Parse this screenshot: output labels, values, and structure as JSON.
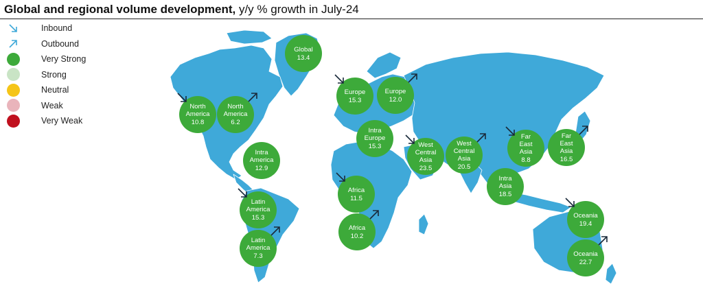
{
  "title": {
    "bold": "Global and regional volume development,",
    "regular": " y/y % growth in July-24"
  },
  "colors": {
    "ocean": "#ffffff",
    "land": "#3fa9d9",
    "very_strong": "#3daa3a",
    "strong": "#c9e4c5",
    "neutral": "#f5c518",
    "weak": "#e9b4bb",
    "very_weak": "#c0101e",
    "inbound_arrow": "#3fa9d9",
    "map_arrow": "#1a2a3a"
  },
  "legend": [
    {
      "label": "Inbound",
      "icon": "inbound-arrow-icon"
    },
    {
      "label": "Outbound",
      "icon": "outbound-arrow-icon"
    },
    {
      "label": "Very Strong",
      "icon": "very-strong-dot-icon",
      "color": "#3daa3a"
    },
    {
      "label": "Strong",
      "icon": "strong-dot-icon",
      "color": "#c9e4c5"
    },
    {
      "label": "Neutral",
      "icon": "neutral-dot-icon",
      "color": "#f5c518"
    },
    {
      "label": "Weak",
      "icon": "weak-dot-icon",
      "color": "#e9b4bb"
    },
    {
      "label": "Very Weak",
      "icon": "very-weak-dot-icon",
      "color": "#c0101e"
    }
  ],
  "regions": [
    {
      "name": "Global",
      "value": "13.4",
      "direction": "none",
      "rating": "Very Strong"
    },
    {
      "name": "North America",
      "value": "10.8",
      "direction": "inbound",
      "rating": "Very Strong"
    },
    {
      "name": "North America",
      "value": "6.2",
      "direction": "outbound",
      "rating": "Very Strong"
    },
    {
      "name": "Intra America",
      "value": "12.9",
      "direction": "none",
      "rating": "Very Strong"
    },
    {
      "name": "Latin America",
      "value": "15.3",
      "direction": "inbound",
      "rating": "Very Strong"
    },
    {
      "name": "Latin America",
      "value": "7.3",
      "direction": "outbound",
      "rating": "Very Strong"
    },
    {
      "name": "Europe",
      "value": "15.3",
      "direction": "inbound",
      "rating": "Very Strong"
    },
    {
      "name": "Europe",
      "value": "12.0",
      "direction": "outbound",
      "rating": "Very Strong"
    },
    {
      "name": "Intra Europe",
      "value": "15.3",
      "direction": "none",
      "rating": "Very Strong"
    },
    {
      "name": "Africa",
      "value": "11.5",
      "direction": "inbound",
      "rating": "Very Strong"
    },
    {
      "name": "Africa",
      "value": "10.2",
      "direction": "outbound",
      "rating": "Very Strong"
    },
    {
      "name": "West Central Asia",
      "value": "23.5",
      "direction": "inbound",
      "rating": "Very Strong"
    },
    {
      "name": "West Central Asia",
      "value": "20.5",
      "direction": "outbound",
      "rating": "Very Strong"
    },
    {
      "name": "Far East Asia",
      "value": "8.8",
      "direction": "inbound",
      "rating": "Very Strong"
    },
    {
      "name": "Far East Asia",
      "value": "16.5",
      "direction": "outbound",
      "rating": "Very Strong"
    },
    {
      "name": "Intra Asia",
      "value": "18.5",
      "direction": "none",
      "rating": "Very Strong"
    },
    {
      "name": "Oceania",
      "value": "19.4",
      "direction": "inbound",
      "rating": "Very Strong"
    },
    {
      "name": "Oceania",
      "value": "22.7",
      "direction": "outbound",
      "rating": "Very Strong"
    }
  ]
}
